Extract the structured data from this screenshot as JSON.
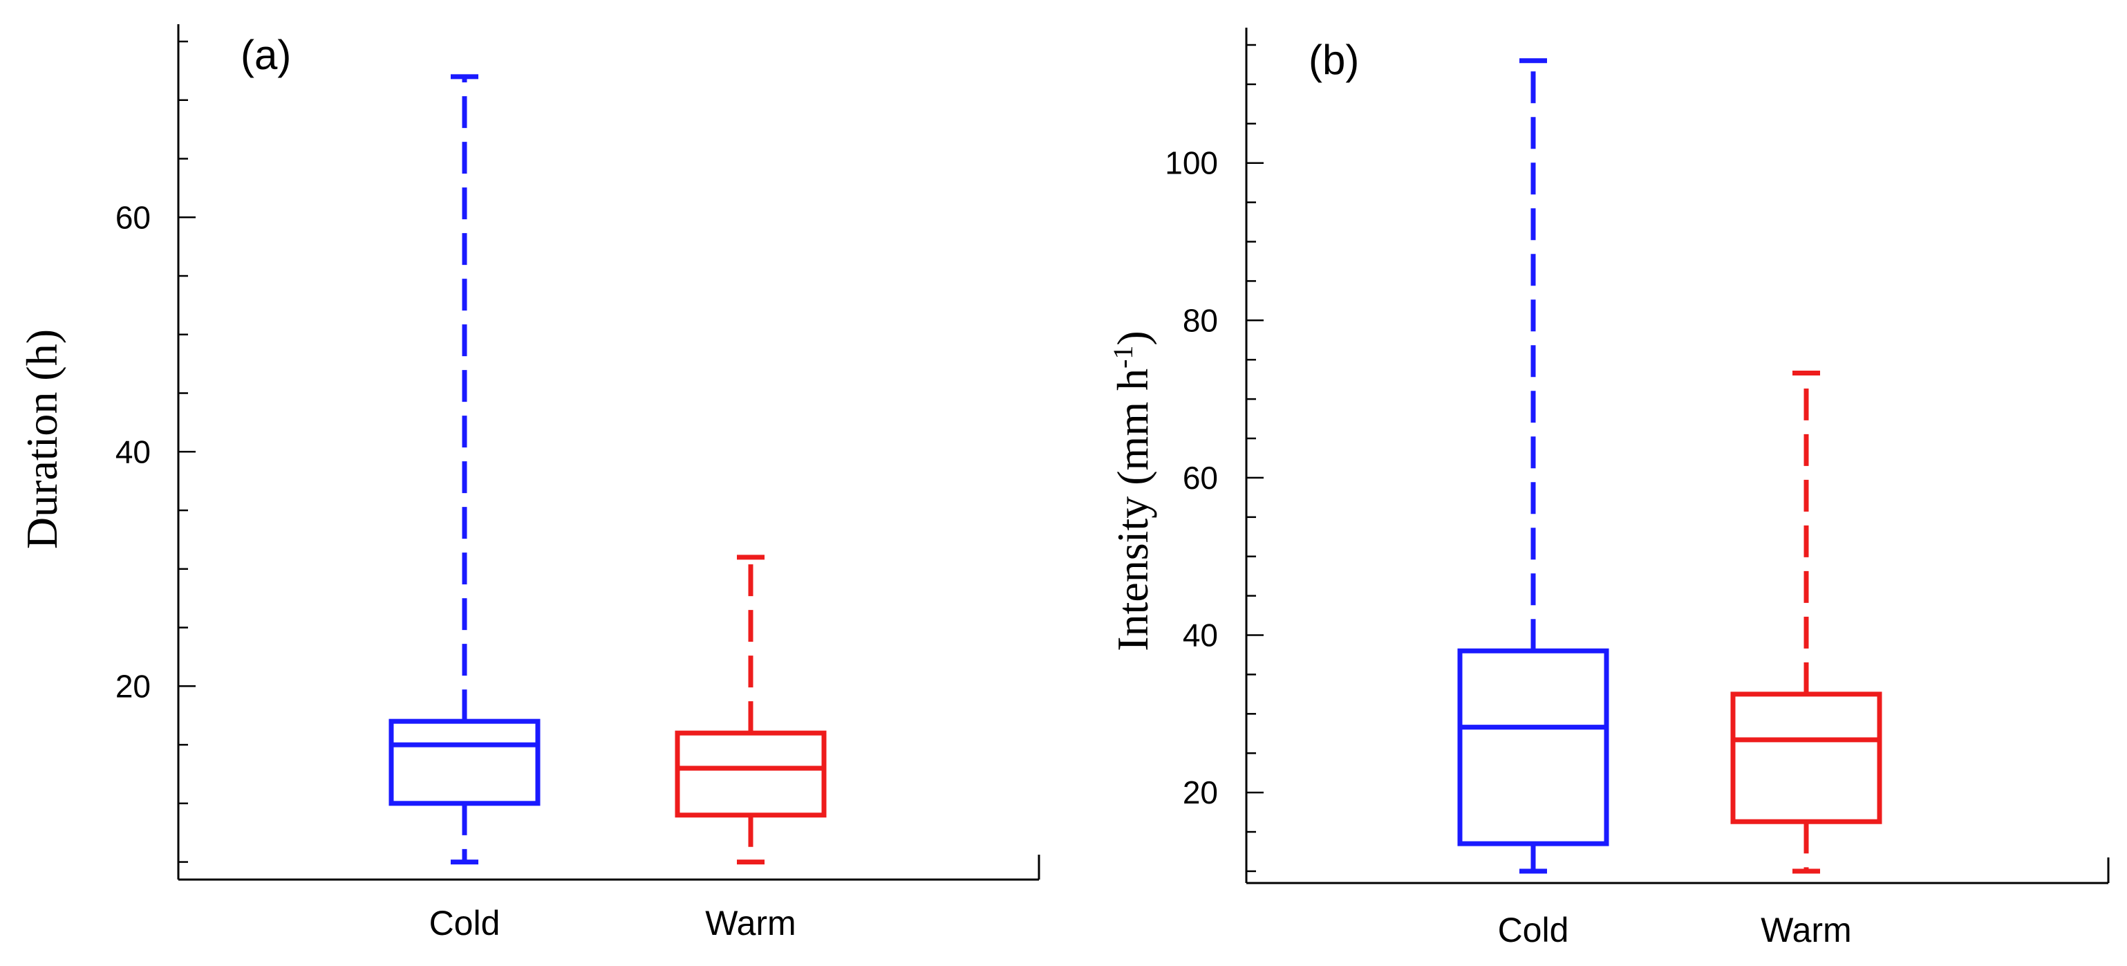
{
  "chart_data": [
    {
      "type": "boxplot",
      "panel": "(a)",
      "ylabel": "Duration (h)",
      "ylim": [
        3.5,
        75
      ],
      "yticks_major": [
        20,
        40,
        60
      ],
      "yticks_minor_step": 5,
      "categories": [
        "Cold",
        "Warm"
      ],
      "series": [
        {
          "name": "Cold",
          "color": "#1a1aff",
          "min": 5,
          "q1": 10,
          "median": 15,
          "q3": 17,
          "max": 72
        },
        {
          "name": "Warm",
          "color": "#ee1c1c",
          "min": 5,
          "q1": 9,
          "median": 13,
          "q3": 16,
          "max": 31
        }
      ]
    },
    {
      "type": "boxplot",
      "panel": "(b)",
      "ylabel": "Intensity (mm h",
      "ylabel_sup": "-1",
      "ylabel_tail": ")",
      "ylim": [
        8.5,
        115
      ],
      "yticks_major": [
        20,
        40,
        60,
        80,
        100
      ],
      "yticks_minor_step": 5,
      "categories": [
        "Cold",
        "Warm"
      ],
      "series": [
        {
          "name": "Cold",
          "color": "#1a1aff",
          "min": 10,
          "q1": 13.5,
          "median": 28.3,
          "q3": 38,
          "max": 113
        },
        {
          "name": "Warm",
          "color": "#ee1c1c",
          "min": 10,
          "q1": 16.3,
          "median": 26.7,
          "q3": 32.5,
          "max": 73.3
        }
      ]
    }
  ]
}
